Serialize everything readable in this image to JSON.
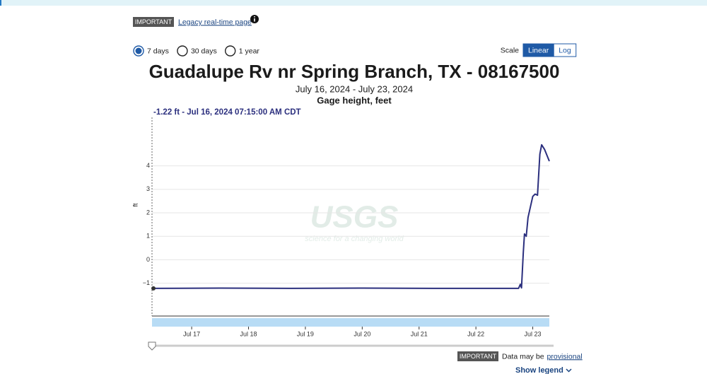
{
  "banner": {
    "badge": "IMPORTANT",
    "link": "Legacy real-time page"
  },
  "period_options": [
    {
      "label": "7 days",
      "selected": true
    },
    {
      "label": "30 days",
      "selected": false
    },
    {
      "label": "1 year",
      "selected": false
    }
  ],
  "scale": {
    "label": "Scale",
    "options": [
      "Linear",
      "Log"
    ],
    "selected": "Linear"
  },
  "chart_data": {
    "type": "line",
    "title": "Guadalupe Rv nr Spring Branch, TX - 08167500",
    "subtitle": "July 16, 2024 - July 23, 2024",
    "parameter": "Gage height, feet",
    "ylabel": "ft",
    "tooltip": "-1.22 ft - Jul 16, 2024 07:15:00 AM CDT",
    "watermark": {
      "logo": "USGS",
      "tagline": "science for a changing world"
    },
    "color": "#2b2f7e",
    "x": [
      "2024-07-16T07:15",
      "2024-07-17T12:00",
      "2024-07-18T18:00",
      "2024-07-20T00:00",
      "2024-07-21T06:00",
      "2024-07-22T12:00",
      "2024-07-22T18:00",
      "2024-07-22T18:45",
      "2024-07-22T19:15",
      "2024-07-22T20:00",
      "2024-07-22T20:30",
      "2024-07-22T21:15",
      "2024-07-22T22:00",
      "2024-07-23T00:00",
      "2024-07-23T01:00",
      "2024-07-23T02:00",
      "2024-07-23T03:00",
      "2024-07-23T03:45",
      "2024-07-23T05:00",
      "2024-07-23T07:00"
    ],
    "values": [
      -1.22,
      -1.21,
      -1.22,
      -1.21,
      -1.22,
      -1.22,
      -1.22,
      -1.05,
      -1.2,
      0.3,
      1.1,
      1.0,
      1.8,
      2.7,
      2.8,
      2.75,
      4.5,
      4.9,
      4.7,
      4.2
    ],
    "xlim": [
      "2024-07-16T07:15",
      "2024-07-23T07:00"
    ],
    "xticks": [
      {
        "value": "2024-07-17",
        "label": "Jul 17"
      },
      {
        "value": "2024-07-18",
        "label": "Jul 18"
      },
      {
        "value": "2024-07-19",
        "label": "Jul 19"
      },
      {
        "value": "2024-07-20",
        "label": "Jul 20"
      },
      {
        "value": "2024-07-21",
        "label": "Jul 21"
      },
      {
        "value": "2024-07-22",
        "label": "Jul 22"
      },
      {
        "value": "2024-07-23",
        "label": "Jul 23"
      }
    ],
    "ylim": [
      -2.4,
      6.1
    ],
    "yticks": [
      {
        "value": -1,
        "label": "−1"
      },
      0,
      1,
      2,
      3,
      4
    ],
    "grid": true
  },
  "footer": {
    "badge": "IMPORTANT",
    "note": "Data may be",
    "link": "provisional",
    "legend_toggle": "Show legend"
  }
}
